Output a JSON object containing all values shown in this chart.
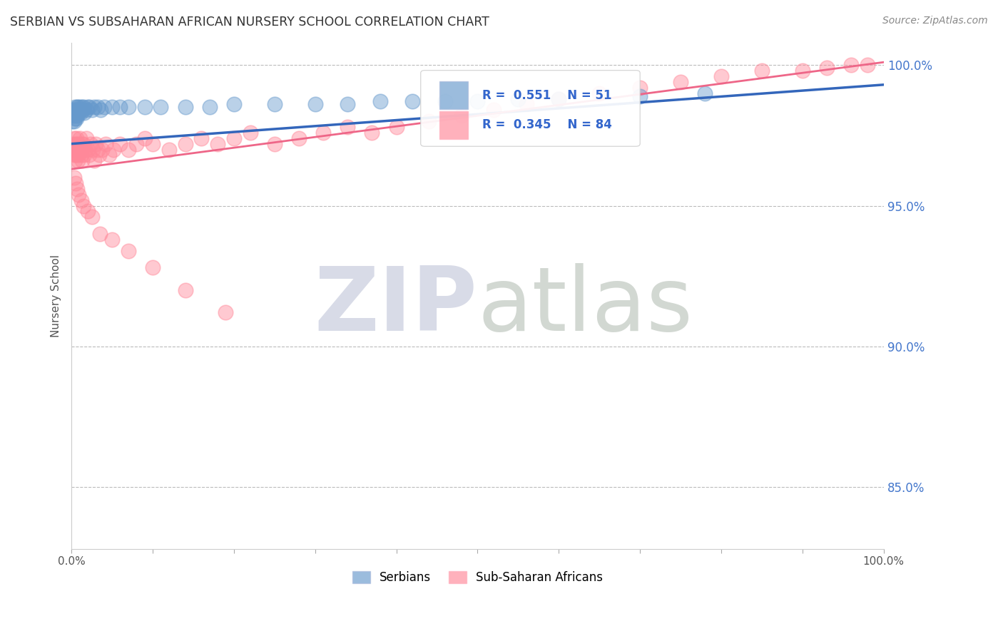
{
  "title": "SERBIAN VS SUBSAHARAN AFRICAN NURSERY SCHOOL CORRELATION CHART",
  "source": "Source: ZipAtlas.com",
  "ylabel": "Nursery School",
  "r_serbian": 0.551,
  "n_serbian": 51,
  "r_subsaharan": 0.345,
  "n_subsaharan": 84,
  "color_serbian": "#6699CC",
  "color_subsaharan": "#FF8899",
  "color_trend_serbian": "#3366BB",
  "color_trend_subsaharan": "#EE6688",
  "xlim": [
    0.0,
    1.0
  ],
  "ylim": [
    0.828,
    1.008
  ],
  "yticks": [
    0.85,
    0.9,
    0.95,
    1.0
  ],
  "ytick_labels": [
    "85.0%",
    "90.0%",
    "95.0%",
    "100.0%"
  ],
  "background_color": "#FFFFFF",
  "trend_serbian_x0": 0.0,
  "trend_serbian_y0": 0.972,
  "trend_serbian_x1": 1.0,
  "trend_serbian_y1": 0.993,
  "trend_subsaharan_x0": 0.0,
  "trend_subsaharan_y0": 0.963,
  "trend_subsaharan_x1": 1.0,
  "trend_subsaharan_y1": 1.001,
  "dashed_line_y": 0.997,
  "watermark_zip_color": "#C8CCDD",
  "watermark_atlas_color": "#C0C8C0",
  "serb_x": [
    0.001,
    0.002,
    0.002,
    0.003,
    0.003,
    0.004,
    0.004,
    0.005,
    0.005,
    0.006,
    0.006,
    0.007,
    0.007,
    0.008,
    0.008,
    0.009,
    0.01,
    0.01,
    0.011,
    0.012,
    0.013,
    0.014,
    0.015,
    0.016,
    0.018,
    0.02,
    0.022,
    0.025,
    0.028,
    0.032,
    0.036,
    0.04,
    0.05,
    0.06,
    0.07,
    0.09,
    0.11,
    0.14,
    0.17,
    0.2,
    0.25,
    0.3,
    0.34,
    0.38,
    0.42,
    0.46,
    0.5,
    0.55,
    0.6,
    0.7,
    0.78
  ],
  "serb_y": [
    0.98,
    0.982,
    0.984,
    0.98,
    0.983,
    0.981,
    0.985,
    0.982,
    0.984,
    0.981,
    0.983,
    0.985,
    0.982,
    0.984,
    0.985,
    0.983,
    0.984,
    0.985,
    0.983,
    0.984,
    0.985,
    0.984,
    0.985,
    0.983,
    0.984,
    0.985,
    0.985,
    0.984,
    0.985,
    0.985,
    0.984,
    0.985,
    0.985,
    0.985,
    0.985,
    0.985,
    0.985,
    0.985,
    0.985,
    0.986,
    0.986,
    0.986,
    0.986,
    0.987,
    0.987,
    0.987,
    0.987,
    0.988,
    0.988,
    0.989,
    0.99
  ],
  "sub_x": [
    0.001,
    0.002,
    0.003,
    0.003,
    0.004,
    0.004,
    0.005,
    0.005,
    0.006,
    0.006,
    0.007,
    0.007,
    0.008,
    0.008,
    0.009,
    0.009,
    0.01,
    0.01,
    0.011,
    0.012,
    0.013,
    0.013,
    0.014,
    0.015,
    0.016,
    0.017,
    0.018,
    0.02,
    0.022,
    0.024,
    0.026,
    0.028,
    0.03,
    0.032,
    0.034,
    0.038,
    0.042,
    0.046,
    0.052,
    0.06,
    0.07,
    0.08,
    0.09,
    0.1,
    0.12,
    0.14,
    0.16,
    0.18,
    0.2,
    0.22,
    0.25,
    0.28,
    0.31,
    0.34,
    0.37,
    0.4,
    0.44,
    0.48,
    0.52,
    0.56,
    0.6,
    0.65,
    0.7,
    0.75,
    0.8,
    0.85,
    0.9,
    0.93,
    0.96,
    0.98,
    0.003,
    0.005,
    0.007,
    0.009,
    0.012,
    0.015,
    0.02,
    0.025,
    0.035,
    0.05,
    0.07,
    0.1,
    0.14,
    0.19
  ],
  "sub_y": [
    0.97,
    0.972,
    0.968,
    0.974,
    0.97,
    0.966,
    0.972,
    0.968,
    0.97,
    0.974,
    0.968,
    0.972,
    0.97,
    0.966,
    0.972,
    0.968,
    0.97,
    0.974,
    0.97,
    0.968,
    0.972,
    0.966,
    0.97,
    0.972,
    0.968,
    0.97,
    0.974,
    0.97,
    0.968,
    0.972,
    0.97,
    0.966,
    0.972,
    0.97,
    0.968,
    0.97,
    0.972,
    0.968,
    0.97,
    0.972,
    0.97,
    0.972,
    0.974,
    0.972,
    0.97,
    0.972,
    0.974,
    0.972,
    0.974,
    0.976,
    0.972,
    0.974,
    0.976,
    0.978,
    0.976,
    0.978,
    0.98,
    0.982,
    0.984,
    0.986,
    0.988,
    0.99,
    0.992,
    0.994,
    0.996,
    0.998,
    0.998,
    0.999,
    1.0,
    1.0,
    0.96,
    0.958,
    0.956,
    0.954,
    0.952,
    0.95,
    0.948,
    0.946,
    0.94,
    0.938,
    0.934,
    0.928,
    0.92,
    0.912
  ]
}
